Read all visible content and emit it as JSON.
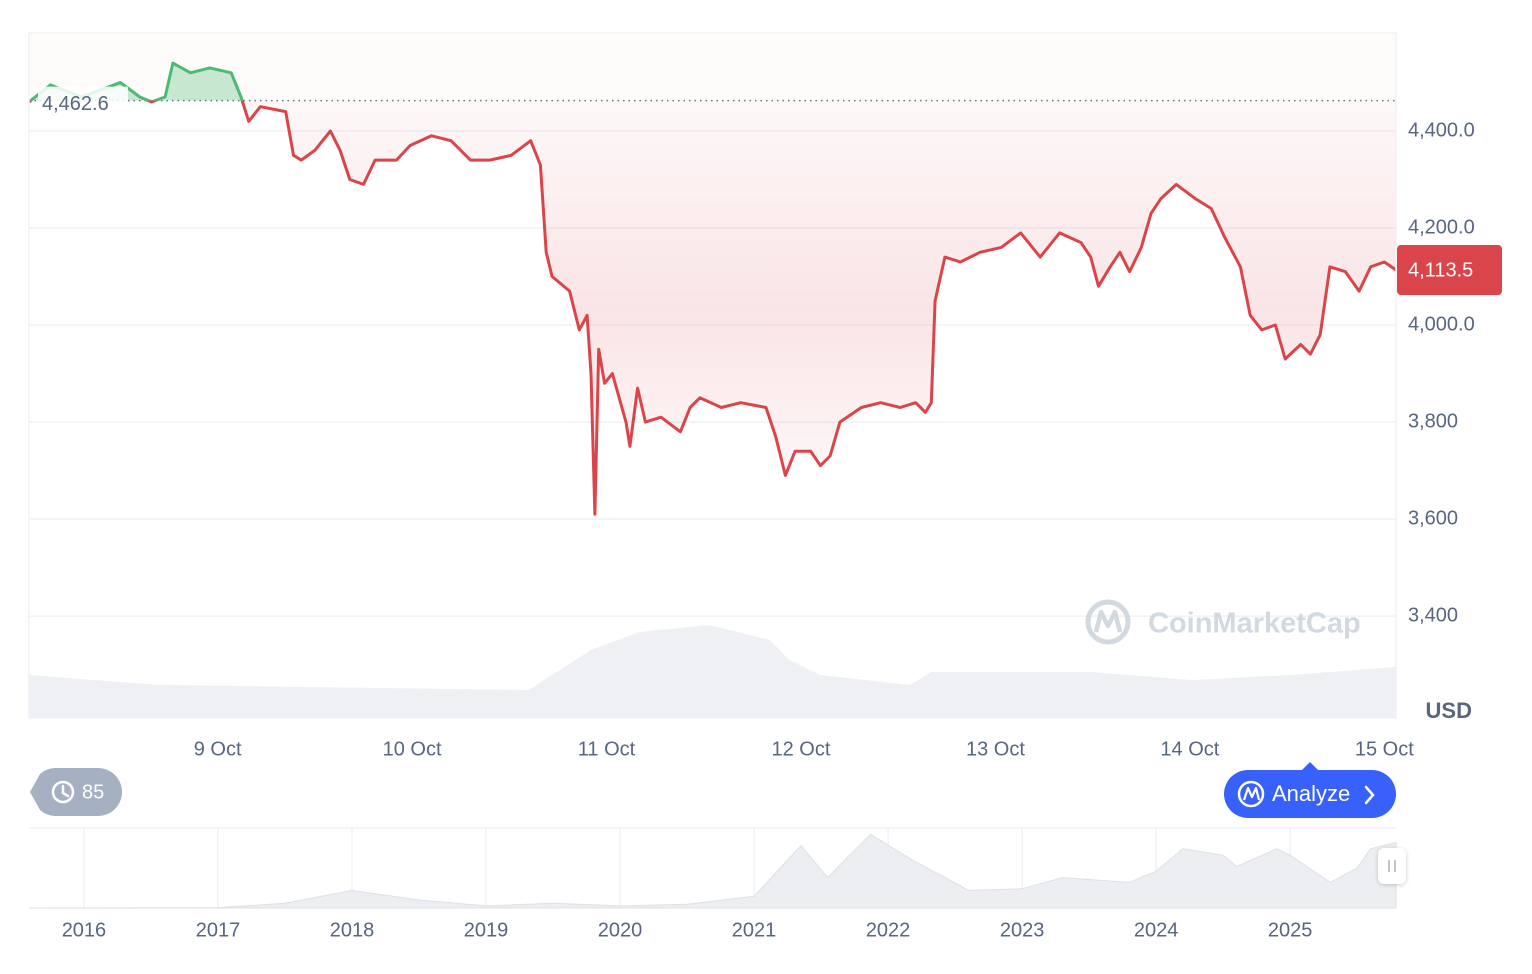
{
  "chart_data": [
    {
      "type": "line",
      "x": [
        8.03,
        8.14,
        8.3,
        8.4,
        8.5,
        8.6,
        8.66,
        8.73,
        8.77,
        8.86,
        8.96,
        9.07,
        9.12,
        9.16,
        9.22,
        9.35,
        9.39,
        9.43,
        9.5,
        9.58,
        9.63,
        9.68,
        9.75,
        9.81,
        9.92,
        9.99,
        10.1,
        10.2,
        10.3,
        10.4,
        10.51,
        10.61,
        10.66,
        10.69,
        10.72,
        10.81,
        10.86,
        10.9,
        10.92,
        10.94,
        10.96,
        10.99,
        11.03,
        11.1,
        11.12,
        11.16,
        11.2,
        11.28,
        11.38,
        11.43,
        11.48,
        11.59,
        11.69,
        11.82,
        11.87,
        11.92,
        11.97,
        12.05,
        12.1,
        12.15,
        12.2,
        12.31,
        12.41,
        12.51,
        12.59,
        12.64,
        12.67,
        12.69,
        12.74,
        12.82,
        12.92,
        13.03,
        13.13,
        13.23,
        13.33,
        13.44,
        13.49,
        13.53,
        13.59,
        13.64,
        13.69,
        13.75,
        13.8,
        13.85,
        13.93,
        14.03,
        14.11,
        14.18,
        14.26,
        14.31,
        14.37,
        14.44,
        14.49,
        14.57,
        14.62,
        14.67,
        14.72,
        14.8,
        14.87,
        14.93,
        15.0,
        15.06
      ],
      "values": [
        4460,
        4495,
        4470,
        4485,
        4500,
        4470,
        4460,
        4470,
        4540,
        4520,
        4530,
        4520,
        4470,
        4420,
        4450,
        4440,
        4350,
        4340,
        4360,
        4400,
        4360,
        4300,
        4290,
        4340,
        4340,
        4370,
        4390,
        4380,
        4340,
        4340,
        4350,
        4380,
        4330,
        4150,
        4100,
        4070,
        3990,
        4020,
        3900,
        3610,
        3950,
        3880,
        3900,
        3800,
        3750,
        3870,
        3800,
        3810,
        3780,
        3830,
        3850,
        3830,
        3840,
        3830,
        3770,
        3690,
        3740,
        3740,
        3710,
        3730,
        3800,
        3830,
        3840,
        3830,
        3840,
        3820,
        3840,
        4050,
        4140,
        4130,
        4150,
        4160,
        4190,
        4140,
        4190,
        4170,
        4140,
        4080,
        4120,
        4150,
        4110,
        4160,
        4230,
        4260,
        4290,
        4260,
        4240,
        4180,
        4120,
        4020,
        3990,
        4000,
        3930,
        3960,
        3940,
        3980,
        4120,
        4110,
        4070,
        4120,
        4130,
        4113.5
      ],
      "xlim": [
        8.03,
        15.06
      ],
      "ylim": [
        3190,
        4602
      ],
      "xticks": [
        {
          "value": 9,
          "label": "9 Oct"
        },
        {
          "value": 10,
          "label": "10 Oct"
        },
        {
          "value": 11,
          "label": "11 Oct"
        },
        {
          "value": 12,
          "label": "12 Oct"
        },
        {
          "value": 13,
          "label": "13 Oct"
        },
        {
          "value": 14,
          "label": "14 Oct"
        },
        {
          "value": 15,
          "label": "15 Oct"
        }
      ],
      "yticks": [
        {
          "value": 4400,
          "label": "4,400.0"
        },
        {
          "value": 4200,
          "label": "4,200.0"
        },
        {
          "value": 4000,
          "label": "4,000.0"
        },
        {
          "value": 3800,
          "label": "3,800"
        },
        {
          "value": 3600,
          "label": "3,600"
        },
        {
          "value": 3400,
          "label": "3,400"
        }
      ],
      "grid": true,
      "baseline": {
        "value": 4462.6,
        "label": "4,462.6"
      },
      "last_price": {
        "value": 4113.5,
        "label": "4,113.5"
      },
      "currency": "USD",
      "colors": {
        "up": "#4cba72",
        "down": "#d9454a"
      },
      "volume": {
        "x": [
          8.03,
          8.7,
          10.6,
          10.92,
          11.17,
          11.53,
          11.84,
          11.94,
          12.1,
          12.56,
          12.67,
          13.49,
          14.01,
          14.52,
          15.06
        ],
        "values": [
          43,
          33,
          28,
          68,
          86,
          93,
          78,
          58,
          43,
          33,
          46,
          46,
          38,
          43,
          51
        ],
        "vlim": [
          0,
          100
        ]
      }
    },
    {
      "type": "area",
      "x": [
        2015.59,
        2016.5,
        2017.0,
        2017.5,
        2018.0,
        2018.5,
        2019.0,
        2019.5,
        2020.0,
        2020.5,
        2021.0,
        2021.35,
        2021.55,
        2021.7,
        2021.87,
        2022.2,
        2022.45,
        2022.6,
        2023.0,
        2023.3,
        2023.8,
        2024.0,
        2024.2,
        2024.5,
        2024.6,
        2024.9,
        2025.0,
        2025.3,
        2025.5,
        2025.6,
        2025.79
      ],
      "values": [
        1,
        12,
        10,
        300,
        1100,
        500,
        130,
        300,
        130,
        230,
        730,
        3900,
        1900,
        3200,
        4600,
        2900,
        1800,
        1100,
        1200,
        1900,
        1600,
        2300,
        3700,
        3300,
        2600,
        3700,
        3300,
        1600,
        2500,
        3700,
        4100
      ],
      "xlim": [
        2015.59,
        2025.79
      ],
      "ylim": [
        0,
        5000
      ],
      "xticks": [
        2016,
        2017,
        2018,
        2019,
        2020,
        2021,
        2022,
        2023,
        2024,
        2025
      ]
    }
  ],
  "ui": {
    "history_count": 85,
    "analyze": "Analyze",
    "watermark": "CoinMarketCap"
  }
}
